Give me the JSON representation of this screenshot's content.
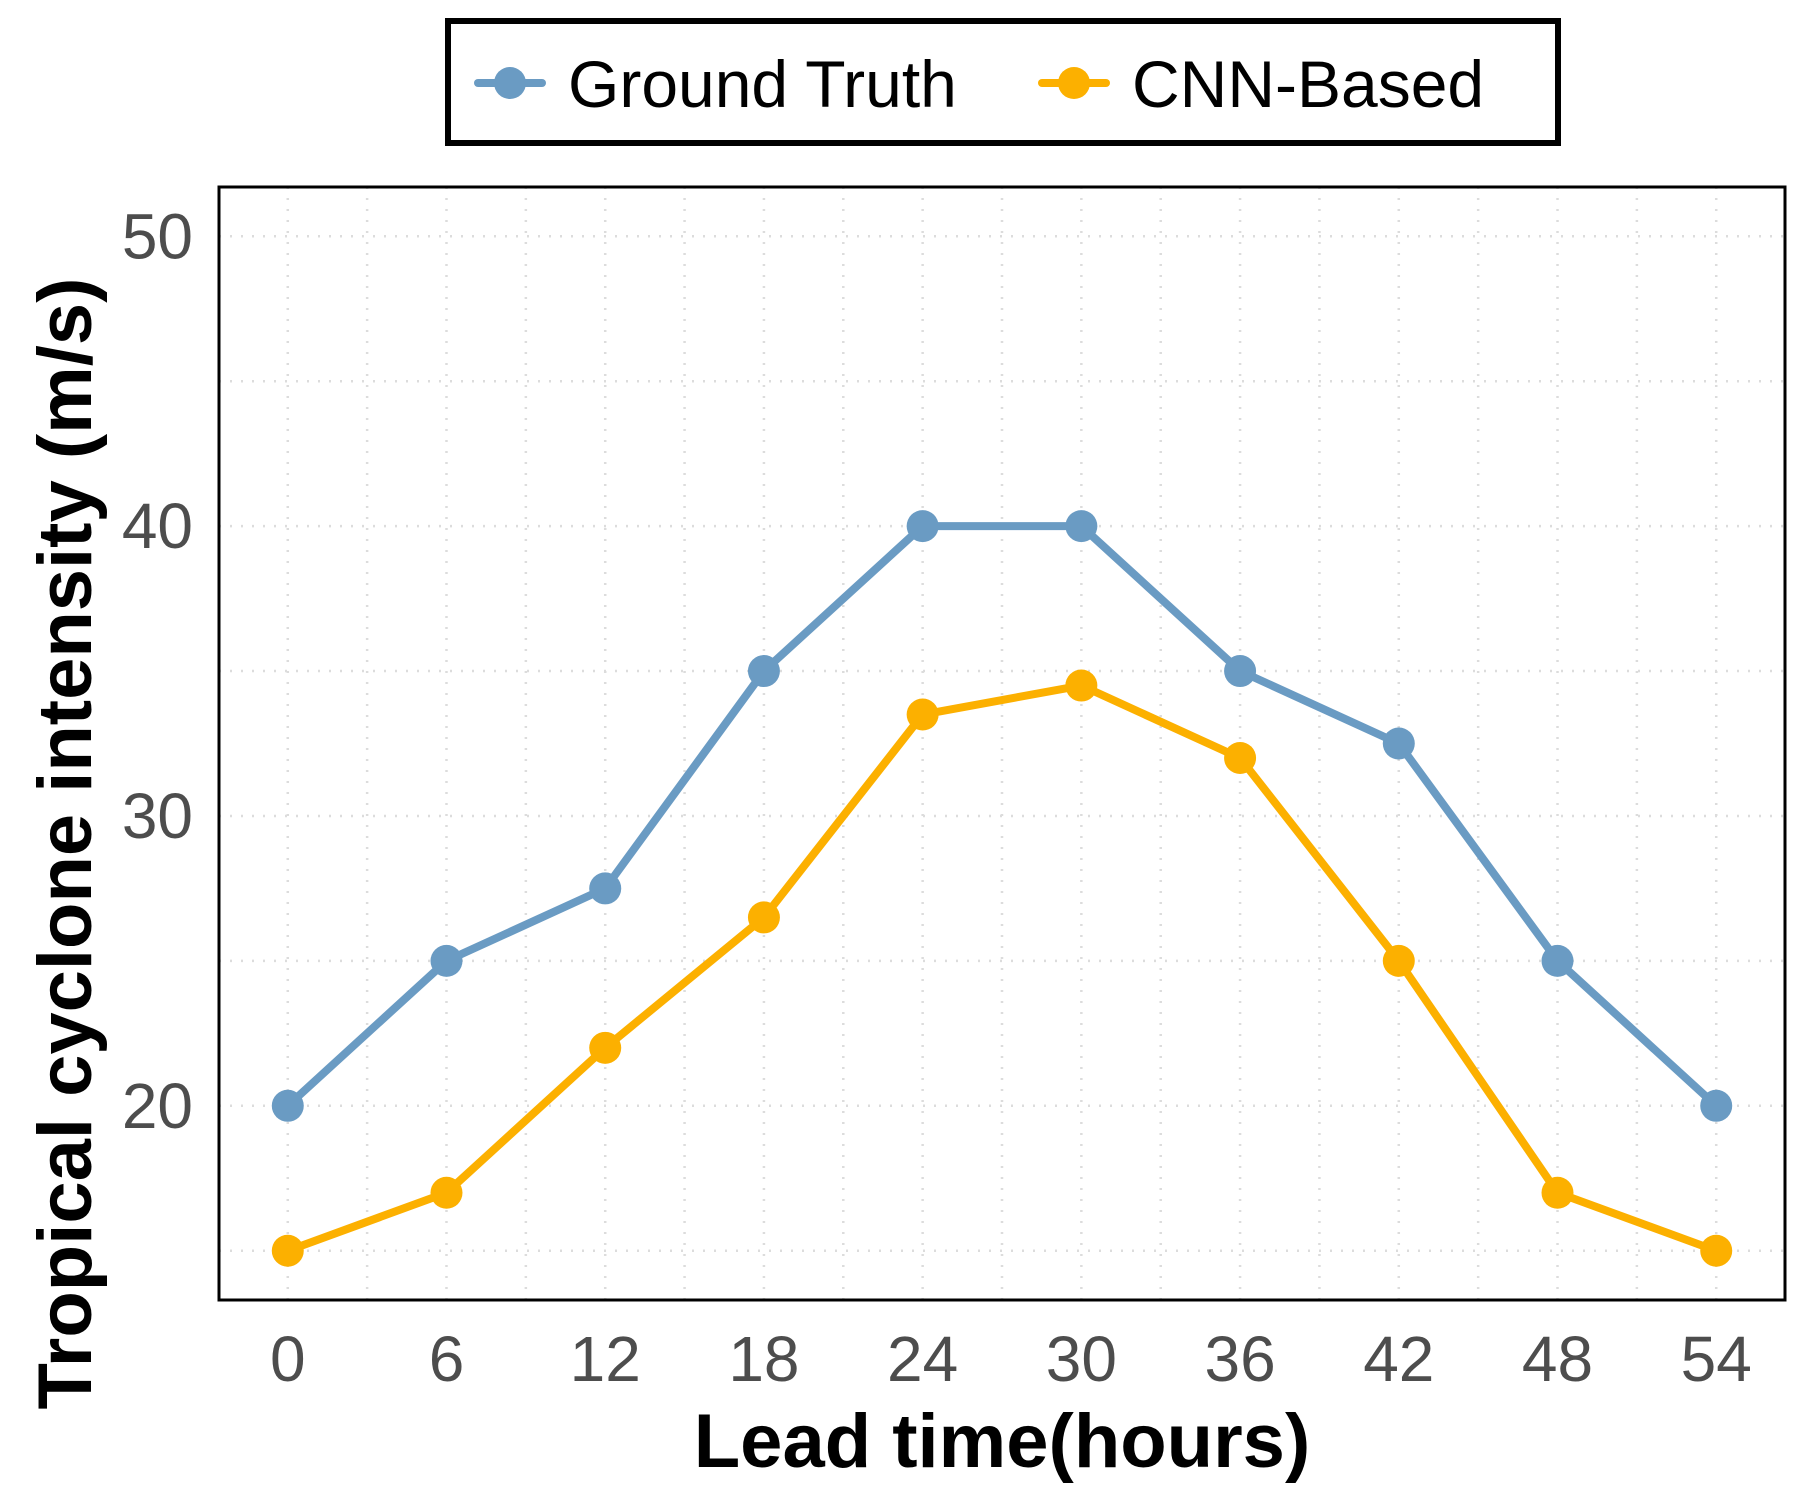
{
  "chart_data": {
    "type": "line",
    "x": [
      0,
      6,
      12,
      18,
      24,
      30,
      36,
      42,
      48,
      54
    ],
    "xlabel": "Lead time(hours)",
    "ylabel": "Tropical cyclone intensity (m/s)",
    "xlim": [
      -2.6,
      56.6
    ],
    "ylim": [
      13.3,
      51.7
    ],
    "xticks": [
      0,
      6,
      12,
      18,
      24,
      30,
      36,
      42,
      48,
      54
    ],
    "yticks": [
      20,
      30,
      40,
      50
    ],
    "grid": true,
    "legend_position": "top",
    "series": [
      {
        "name": "Ground Truth",
        "color": "#6a9bc3",
        "values": [
          20,
          25,
          27.5,
          35,
          40,
          40,
          35,
          32.5,
          25,
          20
        ]
      },
      {
        "name": "CNN-Based",
        "color": "#fcb000",
        "values": [
          15,
          17,
          22,
          26.5,
          33.5,
          34.5,
          32,
          25,
          17,
          15
        ]
      }
    ]
  }
}
